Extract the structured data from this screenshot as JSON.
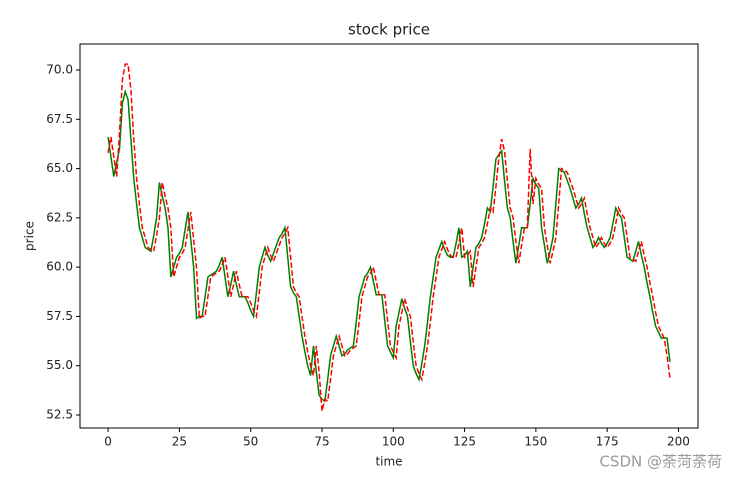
{
  "chart_data": {
    "type": "line",
    "title": "stock price",
    "x_label": "time",
    "y_label": "price",
    "x": [
      0,
      1,
      2,
      3,
      4,
      5,
      6,
      7,
      8,
      9,
      10,
      11,
      12,
      13,
      14,
      15,
      16,
      17,
      18,
      19,
      20,
      21,
      22,
      23,
      24,
      25,
      26,
      27,
      28,
      29,
      30,
      31,
      32,
      33,
      34,
      35,
      36,
      37,
      38,
      39,
      40,
      41,
      42,
      43,
      44,
      45,
      46,
      47,
      48,
      49,
      50,
      51,
      52,
      53,
      54,
      55,
      56,
      57,
      58,
      59,
      60,
      61,
      62,
      63,
      64,
      65,
      66,
      67,
      68,
      69,
      70,
      71,
      72,
      73,
      74,
      75,
      76,
      77,
      78,
      79,
      80,
      81,
      82,
      83,
      84,
      85,
      86,
      87,
      88,
      89,
      90,
      91,
      92,
      93,
      94,
      95,
      96,
      97,
      98,
      99,
      100,
      101,
      102,
      103,
      104,
      105,
      106,
      107,
      108,
      109,
      110,
      111,
      112,
      113,
      114,
      115,
      116,
      117,
      118,
      119,
      120,
      121,
      122,
      123,
      124,
      125,
      126,
      127,
      128,
      129,
      130,
      131,
      132,
      133,
      134,
      135,
      136,
      137,
      138,
      139,
      140,
      141,
      142,
      143,
      144,
      145,
      146,
      147,
      148,
      149,
      150,
      151,
      152,
      153,
      154,
      155,
      156,
      157,
      158,
      159,
      160,
      161,
      162,
      163,
      164,
      165,
      166,
      167,
      168,
      169,
      170,
      171,
      172,
      173,
      174,
      175,
      176,
      177,
      178,
      179,
      180,
      181,
      182,
      183,
      184,
      185,
      186,
      187,
      188,
      189,
      190,
      191,
      192,
      193,
      194,
      195,
      196,
      197
    ],
    "series": [
      {
        "color": "#008000",
        "dash": "solid",
        "values": [
          66.6,
          65.6,
          64.6,
          65.3,
          66.0,
          68.3,
          68.9,
          68.5,
          66.5,
          64.5,
          63.2,
          62.0,
          61.5,
          61.0,
          60.9,
          60.8,
          61.6,
          62.5,
          64.3,
          63.6,
          63.0,
          62.0,
          59.5,
          60.0,
          60.5,
          60.7,
          61.0,
          61.9,
          62.8,
          61.4,
          60.0,
          57.4,
          57.5,
          57.5,
          58.5,
          59.5,
          59.6,
          59.7,
          59.8,
          60.1,
          60.5,
          59.5,
          58.5,
          59.1,
          59.8,
          59.1,
          58.5,
          58.5,
          58.5,
          58.2,
          57.8,
          57.5,
          58.7,
          60.0,
          60.5,
          61.0,
          60.6,
          60.3,
          60.7,
          61.1,
          61.5,
          61.7,
          62.0,
          60.5,
          59.0,
          58.7,
          58.5,
          57.5,
          56.5,
          55.7,
          55.0,
          54.5,
          56.0,
          54.7,
          53.5,
          53.3,
          53.2,
          54.3,
          55.5,
          56.0,
          56.5,
          56.0,
          55.5,
          55.6,
          55.8,
          55.9,
          56.0,
          57.2,
          58.5,
          59.0,
          59.5,
          59.7,
          60.0,
          59.3,
          58.6,
          58.6,
          58.6,
          57.3,
          56.0,
          55.7,
          55.4,
          57.0,
          57.7,
          58.4,
          57.9,
          57.5,
          56.2,
          55.0,
          54.6,
          54.3,
          55.1,
          56.0,
          57.2,
          58.5,
          59.5,
          60.5,
          60.9,
          61.3,
          60.9,
          60.6,
          60.5,
          60.5,
          61.2,
          62.0,
          60.5,
          60.6,
          60.8,
          59.0,
          60.0,
          61.0,
          61.2,
          61.5,
          62.2,
          63.0,
          62.8,
          64.1,
          65.5,
          65.7,
          65.9,
          64.4,
          63.0,
          62.5,
          61.3,
          60.2,
          61.1,
          62.0,
          62.0,
          62.0,
          63.2,
          64.5,
          64.2,
          64.0,
          62.0,
          61.1,
          60.2,
          60.8,
          61.5,
          63.2,
          65.0,
          64.9,
          64.8,
          64.4,
          64.0,
          63.5,
          63.0,
          63.2,
          63.5,
          62.7,
          62.0,
          61.5,
          61.0,
          61.2,
          61.5,
          61.2,
          61.0,
          61.2,
          61.5,
          62.2,
          63.0,
          62.7,
          62.5,
          61.5,
          60.5,
          60.4,
          60.3,
          60.8,
          61.3,
          60.6,
          60.0,
          59.2,
          58.5,
          57.7,
          57.0,
          56.7,
          56.4,
          56.4,
          56.4,
          55.2
        ]
      },
      {
        "color": "#ff0000",
        "dash": "dashed",
        "values": [
          65.8,
          66.6,
          65.6,
          64.6,
          66.8,
          69.5,
          70.3,
          70.3,
          69.0,
          66.5,
          64.5,
          63.2,
          62.0,
          61.5,
          61.0,
          60.9,
          60.8,
          61.6,
          62.5,
          64.3,
          63.6,
          63.0,
          62.0,
          59.5,
          60.0,
          60.5,
          60.7,
          61.0,
          61.9,
          62.8,
          61.4,
          60.0,
          57.4,
          57.5,
          57.5,
          58.5,
          59.5,
          59.6,
          59.7,
          59.8,
          60.1,
          60.5,
          59.5,
          58.5,
          59.1,
          59.8,
          59.1,
          58.5,
          58.5,
          58.5,
          58.2,
          57.8,
          57.5,
          58.7,
          60.0,
          60.5,
          61.0,
          60.6,
          60.3,
          60.7,
          61.1,
          61.5,
          61.7,
          62.0,
          60.5,
          59.0,
          58.7,
          58.5,
          57.5,
          56.5,
          55.7,
          55.0,
          54.5,
          56.0,
          54.7,
          52.7,
          53.3,
          53.2,
          54.3,
          55.5,
          56.0,
          56.5,
          56.0,
          55.5,
          55.6,
          55.8,
          55.9,
          56.0,
          57.2,
          58.5,
          59.0,
          59.5,
          59.7,
          60.0,
          59.3,
          58.6,
          58.6,
          58.6,
          57.3,
          56.0,
          55.7,
          55.4,
          57.0,
          57.7,
          58.4,
          57.9,
          57.5,
          56.2,
          55.0,
          54.6,
          54.3,
          55.1,
          56.0,
          57.2,
          58.5,
          59.5,
          60.5,
          60.9,
          61.3,
          60.9,
          60.6,
          60.5,
          60.5,
          61.2,
          62.0,
          60.5,
          60.6,
          60.8,
          59.0,
          60.0,
          61.0,
          61.2,
          61.5,
          62.2,
          63.0,
          62.8,
          64.1,
          65.5,
          66.5,
          65.9,
          64.4,
          63.0,
          62.5,
          61.3,
          60.2,
          61.1,
          62.0,
          62.0,
          66.0,
          63.2,
          64.5,
          64.2,
          64.0,
          62.0,
          61.1,
          60.2,
          60.8,
          61.5,
          63.2,
          65.0,
          64.9,
          64.8,
          64.4,
          64.0,
          63.5,
          63.0,
          63.2,
          63.5,
          62.7,
          62.0,
          61.5,
          61.0,
          61.2,
          61.5,
          61.2,
          61.0,
          61.2,
          61.5,
          62.2,
          63.0,
          62.7,
          62.5,
          61.5,
          60.5,
          60.4,
          60.3,
          60.8,
          61.3,
          60.6,
          60.0,
          59.2,
          58.5,
          57.7,
          57.0,
          56.7,
          56.4,
          55.5,
          54.4
        ]
      }
    ],
    "xlim": [
      -9.85,
      206.85
    ],
    "xticks": [
      0,
      25,
      50,
      75,
      100,
      125,
      150,
      175,
      200
    ],
    "ylim": [
      51.84,
      71.32
    ],
    "yticks": [
      52.5,
      {
        "value": 55,
        "label": "55.0"
      },
      57.5,
      {
        "value": 60,
        "label": "60.0"
      },
      62.5,
      {
        "value": 65,
        "label": "65.0"
      },
      67.5,
      {
        "value": 70,
        "label": "70.0"
      }
    ],
    "grid": false
  },
  "watermark": "CSDN @荼菏荼荷"
}
